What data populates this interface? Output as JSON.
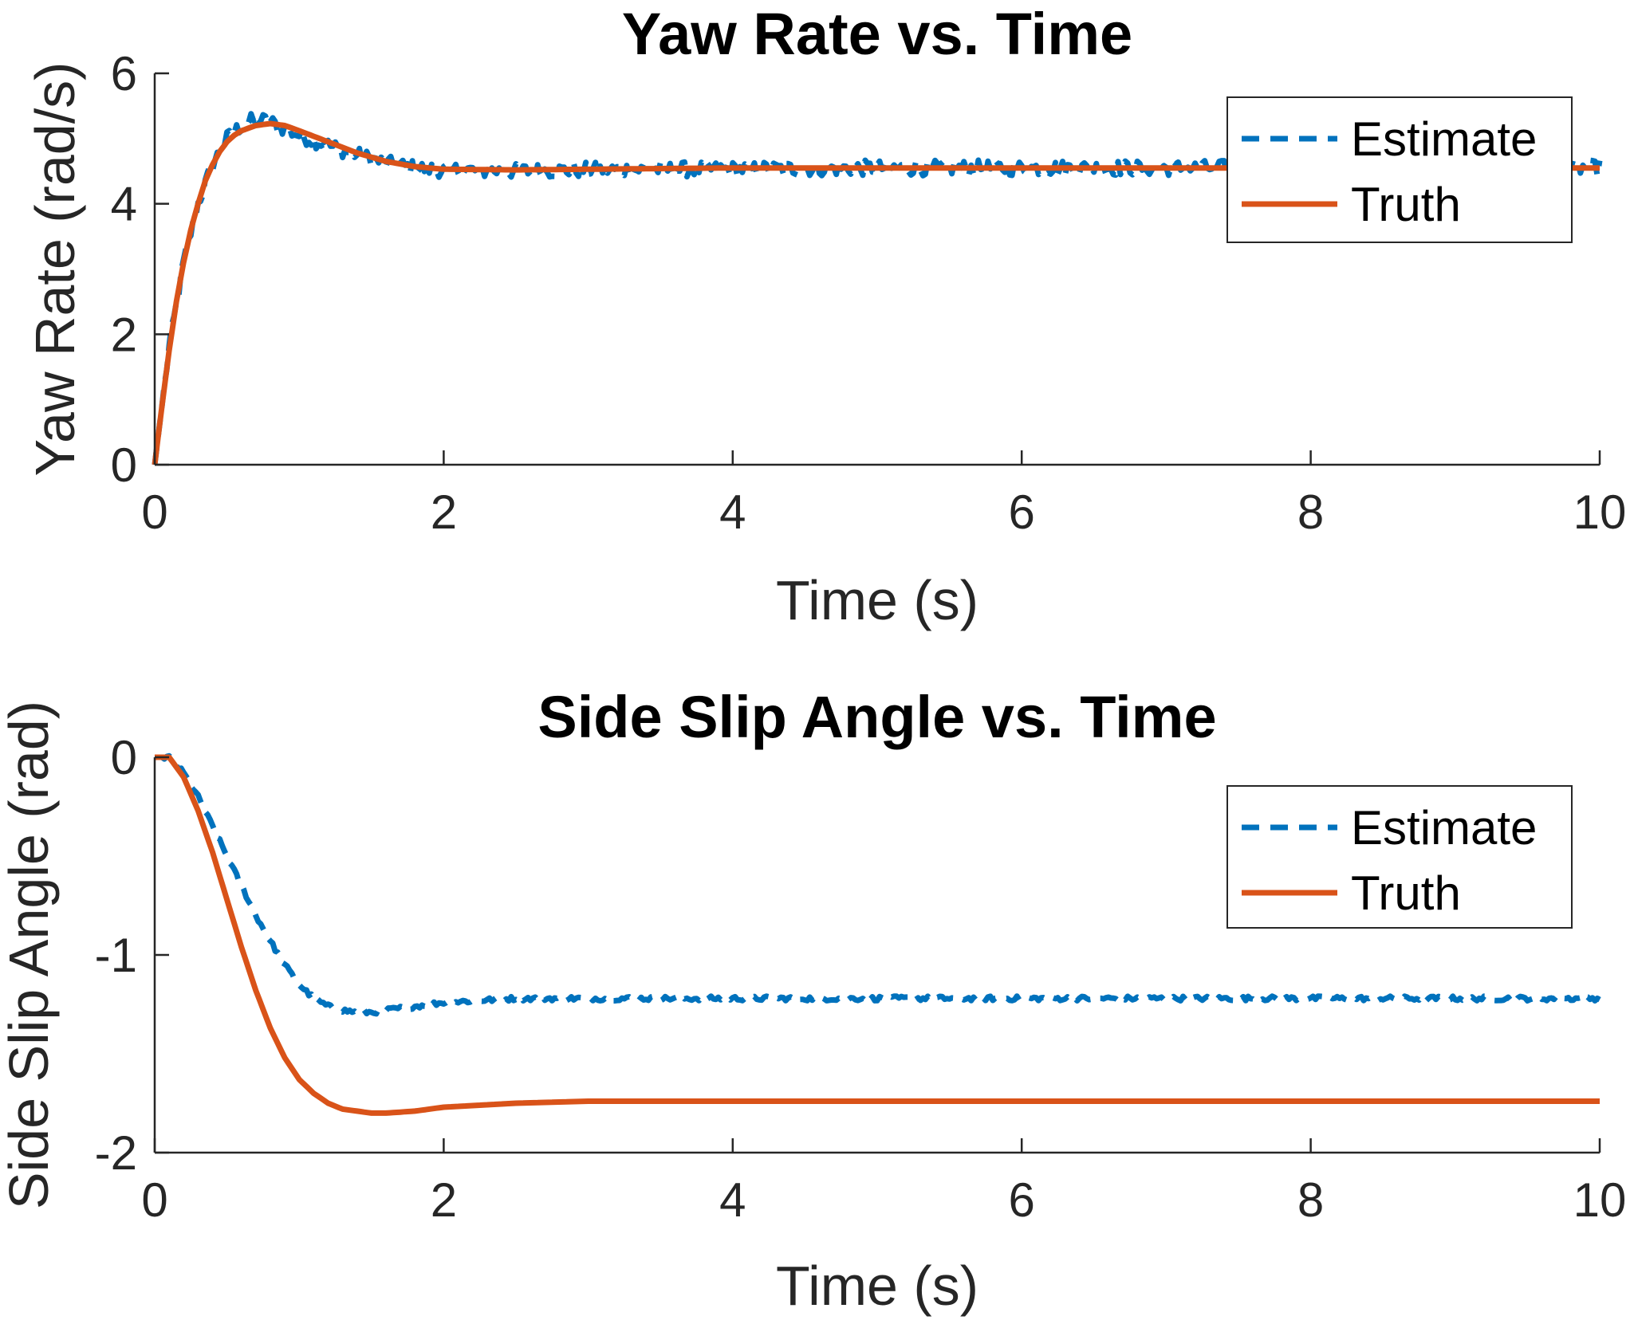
{
  "colors": {
    "estimate": "#0072BD",
    "truth": "#D95319",
    "axis": "#262626",
    "background": "#ffffff"
  },
  "chart_data": [
    {
      "type": "line",
      "title": "Yaw Rate vs. Time",
      "xlabel": "Time (s)",
      "ylabel": "Yaw Rate (rad/s)",
      "xlim": [
        0,
        10
      ],
      "ylim": [
        0,
        6
      ],
      "xticks": [
        0,
        2,
        4,
        6,
        8,
        10
      ],
      "yticks": [
        0,
        2,
        4,
        6
      ],
      "xtick_labels": [
        "0",
        "2",
        "4",
        "6",
        "8",
        "10"
      ],
      "ytick_labels": [
        "0",
        "2",
        "4",
        "6"
      ],
      "grid": false,
      "legend": {
        "position": "top-right",
        "entries": [
          "Estimate",
          "Truth"
        ]
      },
      "series": [
        {
          "name": "Estimate",
          "style": "dashed",
          "noise": 0.12,
          "x": [
            0,
            0.1,
            0.2,
            0.3,
            0.4,
            0.5,
            0.6,
            0.7,
            0.8,
            0.9,
            1.0,
            1.2,
            1.4,
            1.6,
            1.8,
            2.0,
            2.5,
            3.0,
            4.0,
            5.0,
            6.0,
            7.0,
            8.0,
            9.0,
            10.0
          ],
          "y": [
            0,
            1.8,
            3.1,
            4.0,
            4.6,
            5.0,
            5.2,
            5.3,
            5.25,
            5.15,
            5.05,
            4.9,
            4.75,
            4.62,
            4.55,
            4.52,
            4.5,
            4.52,
            4.53,
            4.55,
            4.55,
            4.55,
            4.55,
            4.55,
            4.55
          ]
        },
        {
          "name": "Truth",
          "style": "solid",
          "x": [
            0,
            0.05,
            0.1,
            0.15,
            0.2,
            0.25,
            0.3,
            0.35,
            0.4,
            0.45,
            0.5,
            0.55,
            0.6,
            0.7,
            0.8,
            0.9,
            1.0,
            1.2,
            1.4,
            1.6,
            1.8,
            2.0,
            2.5,
            3.0,
            4.0,
            6.0,
            8.0,
            10.0
          ],
          "y": [
            0,
            0.9,
            1.75,
            2.5,
            3.1,
            3.6,
            4.0,
            4.35,
            4.6,
            4.8,
            4.95,
            5.05,
            5.12,
            5.2,
            5.23,
            5.2,
            5.12,
            4.95,
            4.78,
            4.65,
            4.57,
            4.53,
            4.52,
            4.53,
            4.55,
            4.55,
            4.55,
            4.55
          ]
        }
      ]
    },
    {
      "type": "line",
      "title": "Side Slip Angle vs. Time",
      "xlabel": "Time (s)",
      "ylabel": "Side Slip Angle (rad)",
      "xlim": [
        0,
        10
      ],
      "ylim": [
        -2,
        0
      ],
      "xticks": [
        0,
        2,
        4,
        6,
        8,
        10
      ],
      "yticks": [
        -2,
        -1,
        0
      ],
      "xtick_labels": [
        "0",
        "2",
        "4",
        "6",
        "8",
        "10"
      ],
      "ytick_labels": [
        "-2",
        "-1",
        "0"
      ],
      "grid": false,
      "legend": {
        "position": "top-right",
        "entries": [
          "Estimate",
          "Truth"
        ]
      },
      "series": [
        {
          "name": "Estimate",
          "style": "dashed",
          "noise": 0.012,
          "x": [
            0,
            0.1,
            0.2,
            0.3,
            0.4,
            0.5,
            0.6,
            0.7,
            0.8,
            0.9,
            1.0,
            1.1,
            1.2,
            1.3,
            1.4,
            1.5,
            1.6,
            1.8,
            2.0,
            2.5,
            3.0,
            4.0,
            5.0,
            6.0,
            7.0,
            8.0,
            9.0,
            10.0
          ],
          "y": [
            0,
            0,
            -0.08,
            -0.2,
            -0.35,
            -0.5,
            -0.65,
            -0.8,
            -0.93,
            -1.05,
            -1.15,
            -1.22,
            -1.26,
            -1.28,
            -1.29,
            -1.29,
            -1.28,
            -1.26,
            -1.24,
            -1.22,
            -1.22,
            -1.22,
            -1.22,
            -1.22,
            -1.22,
            -1.22,
            -1.22,
            -1.22
          ]
        },
        {
          "name": "Truth",
          "style": "solid",
          "x": [
            0,
            0.1,
            0.2,
            0.3,
            0.4,
            0.5,
            0.6,
            0.7,
            0.8,
            0.9,
            1.0,
            1.1,
            1.2,
            1.3,
            1.4,
            1.5,
            1.6,
            1.8,
            2.0,
            2.5,
            3.0,
            4.0,
            6.0,
            8.0,
            10.0
          ],
          "y": [
            0,
            0,
            -0.1,
            -0.27,
            -0.48,
            -0.72,
            -0.96,
            -1.18,
            -1.37,
            -1.52,
            -1.63,
            -1.7,
            -1.75,
            -1.78,
            -1.79,
            -1.8,
            -1.8,
            -1.79,
            -1.77,
            -1.75,
            -1.74,
            -1.74,
            -1.74,
            -1.74,
            -1.74
          ]
        }
      ]
    }
  ]
}
